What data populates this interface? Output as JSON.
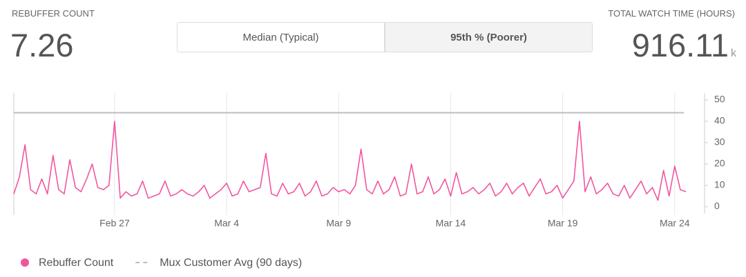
{
  "header": {
    "left_label": "REBUFFER COUNT",
    "left_value": "7.26",
    "toggle": [
      "Median (Typical)",
      "95th % (Poorer)"
    ],
    "right_label": "TOTAL WATCH TIME (HOURS)",
    "right_value": "916.11",
    "right_unit": "k"
  },
  "chart_data": {
    "type": "line",
    "categories": [
      null,
      null,
      null,
      null,
      null,
      null,
      null,
      null,
      null,
      null,
      null,
      null,
      null,
      null,
      null,
      null,
      null,
      null,
      "Feb 27",
      null,
      null,
      null,
      null,
      null,
      null,
      null,
      null,
      null,
      null,
      null,
      null,
      null,
      null,
      null,
      null,
      null,
      null,
      null,
      "Mar 4",
      null,
      null,
      null,
      null,
      null,
      null,
      null,
      null,
      null,
      null,
      null,
      null,
      null,
      null,
      null,
      null,
      null,
      null,
      null,
      "Mar 9",
      null,
      null,
      null,
      null,
      null,
      null,
      null,
      null,
      null,
      null,
      null,
      null,
      null,
      null,
      null,
      null,
      null,
      null,
      null,
      "Mar 14",
      null,
      null,
      null,
      null,
      null,
      null,
      null,
      null,
      null,
      null,
      null,
      null,
      null,
      null,
      null,
      null,
      null,
      null,
      null,
      "Mar 19",
      null,
      null,
      null,
      null,
      null,
      null,
      null,
      null,
      null,
      null,
      null,
      null,
      null,
      null,
      null,
      null,
      null,
      null,
      null,
      "Mar 24",
      null,
      null
    ],
    "series": [
      {
        "name": "Rebuffer Count",
        "color": "#f2559f",
        "values": [
          6,
          14,
          29,
          8,
          6,
          13,
          6,
          24,
          8,
          6,
          22,
          9,
          7,
          13,
          20,
          9,
          8,
          10,
          40,
          4,
          7,
          5,
          6,
          12,
          4,
          5,
          6,
          12,
          5,
          6,
          8,
          6,
          5,
          7,
          10,
          4,
          6,
          8,
          11,
          5,
          6,
          12,
          7,
          8,
          9,
          25,
          6,
          5,
          11,
          6,
          7,
          11,
          5,
          7,
          12,
          5,
          6,
          9,
          7,
          8,
          6,
          10,
          27,
          8,
          6,
          12,
          6,
          8,
          14,
          5,
          6,
          20,
          6,
          7,
          14,
          6,
          8,
          13,
          5,
          16,
          6,
          7,
          9,
          6,
          8,
          11,
          5,
          7,
          11,
          6,
          9,
          11,
          5,
          9,
          13,
          6,
          7,
          10,
          4,
          8,
          12,
          40,
          7,
          14,
          6,
          8,
          11,
          6,
          5,
          10,
          4,
          8,
          12,
          6,
          9,
          3,
          17,
          5,
          19,
          8,
          7
        ]
      }
    ],
    "reference_lines": [
      {
        "name": "Mux Customer Avg (90 days)",
        "value": 44,
        "color": "#bdbdbd"
      }
    ],
    "ylim": [
      0,
      50
    ],
    "yticks": [
      0,
      10,
      20,
      30,
      40,
      50
    ],
    "grid": true
  }
}
